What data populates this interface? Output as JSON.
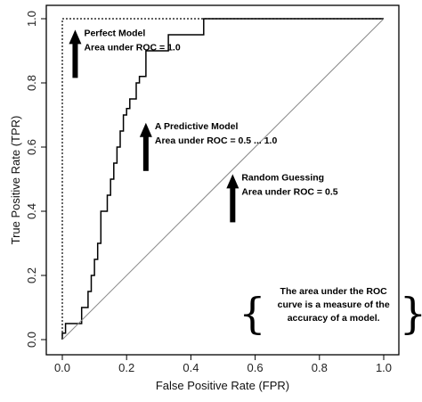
{
  "chart_data": {
    "type": "line",
    "title": "",
    "xlabel": "False Positive Rate (FPR)",
    "ylabel": "True Positive Rate (TPR)",
    "xlim": [
      0,
      1
    ],
    "ylim": [
      0,
      1
    ],
    "x_ticks": [
      "0.0",
      "0.2",
      "0.4",
      "0.6",
      "0.8",
      "1.0"
    ],
    "y_ticks": [
      "0.0",
      "0.2",
      "0.4",
      "0.6",
      "0.8",
      "1.0"
    ],
    "grid": false,
    "legend": "none",
    "series": [
      {
        "style": "dotted",
        "color": "#000000",
        "x": [
          0,
          0,
          1
        ],
        "y": [
          0,
          1,
          1
        ]
      },
      {
        "style": "solid",
        "color": "#000000",
        "x": [
          0,
          0,
          0.01,
          0.01,
          0.06,
          0.06,
          0.08,
          0.08,
          0.09,
          0.09,
          0.1,
          0.1,
          0.11,
          0.11,
          0.12,
          0.12,
          0.14,
          0.14,
          0.15,
          0.15,
          0.16,
          0.16,
          0.17,
          0.17,
          0.18,
          0.18,
          0.19,
          0.19,
          0.2,
          0.2,
          0.21,
          0.21,
          0.23,
          0.23,
          0.24,
          0.24,
          0.26,
          0.26,
          0.27,
          0.27,
          0.33,
          0.33,
          0.44,
          0.44,
          1.0
        ],
        "y": [
          0,
          0.02,
          0.02,
          0.05,
          0.05,
          0.1,
          0.1,
          0.15,
          0.15,
          0.2,
          0.2,
          0.25,
          0.25,
          0.3,
          0.3,
          0.4,
          0.4,
          0.45,
          0.45,
          0.5,
          0.5,
          0.55,
          0.55,
          0.6,
          0.6,
          0.65,
          0.65,
          0.7,
          0.7,
          0.72,
          0.72,
          0.75,
          0.75,
          0.8,
          0.8,
          0.82,
          0.82,
          0.9,
          0.9,
          0.9,
          0.9,
          0.95,
          0.95,
          1.0,
          1.0
        ]
      },
      {
        "style": "diagonal",
        "color": "#888888",
        "x": [
          0,
          1
        ],
        "y": [
          0,
          1
        ]
      }
    ],
    "annotations": [
      {
        "lines": [
          "Perfect Model",
          "Area under ROC = 1.0"
        ],
        "arrow": "up",
        "x": 0.04,
        "y": 0.96
      },
      {
        "lines": [
          "A Predictive Model",
          "Area under ROC = 0.5 ... 1.0"
        ],
        "arrow": "up",
        "x": 0.26,
        "y": 0.67
      },
      {
        "lines": [
          "Random Guessing",
          "Area under ROC = 0.5"
        ],
        "arrow": "up",
        "x": 0.53,
        "y": 0.51
      }
    ],
    "note": {
      "lines": [
        "The area under the ROC",
        "curve is a measure of the",
        "accuracy of a model."
      ],
      "x": 0.65,
      "y": 0.12
    }
  }
}
